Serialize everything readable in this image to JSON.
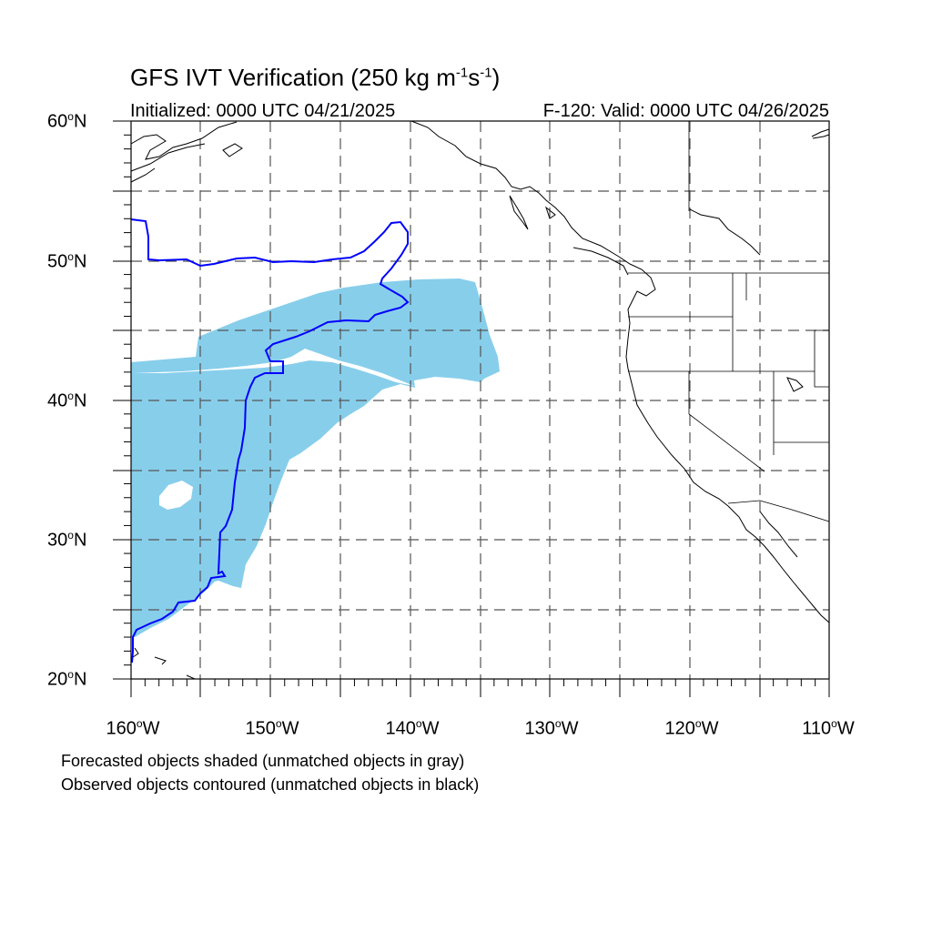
{
  "title": {
    "main": "GFS IVT Verification (250 kg m",
    "sup1": "-1",
    "mid": "s",
    "sup2": "-1",
    "tail": ")"
  },
  "subtitle": {
    "initialized": "Initialized: 0000 UTC 04/21/2025",
    "valid": "F-120: Valid: 0000 UTC 04/26/2025"
  },
  "map": {
    "lon_range": [
      -160,
      -110
    ],
    "lat_range": [
      20,
      60
    ],
    "grid": "dashed every 5 degrees",
    "forecast_fill_color": "#87ceeb",
    "observed_line_color": "#0000ff",
    "coastline_color": "#000000"
  },
  "y_ticks": [
    {
      "value": "60",
      "suffix": "N"
    },
    {
      "value": "50",
      "suffix": "N"
    },
    {
      "value": "40",
      "suffix": "N"
    },
    {
      "value": "30",
      "suffix": "N"
    },
    {
      "value": "20",
      "suffix": "N"
    }
  ],
  "x_ticks": [
    {
      "value": "160",
      "suffix": "W"
    },
    {
      "value": "150",
      "suffix": "W"
    },
    {
      "value": "140",
      "suffix": "W"
    },
    {
      "value": "130",
      "suffix": "W"
    },
    {
      "value": "120",
      "suffix": "W"
    },
    {
      "value": "110",
      "suffix": "W"
    }
  ],
  "captions": {
    "forecast": "Forecasted objects shaded (unmatched objects in gray)",
    "observed": "Observed objects contoured (unmatched objects in black)"
  }
}
